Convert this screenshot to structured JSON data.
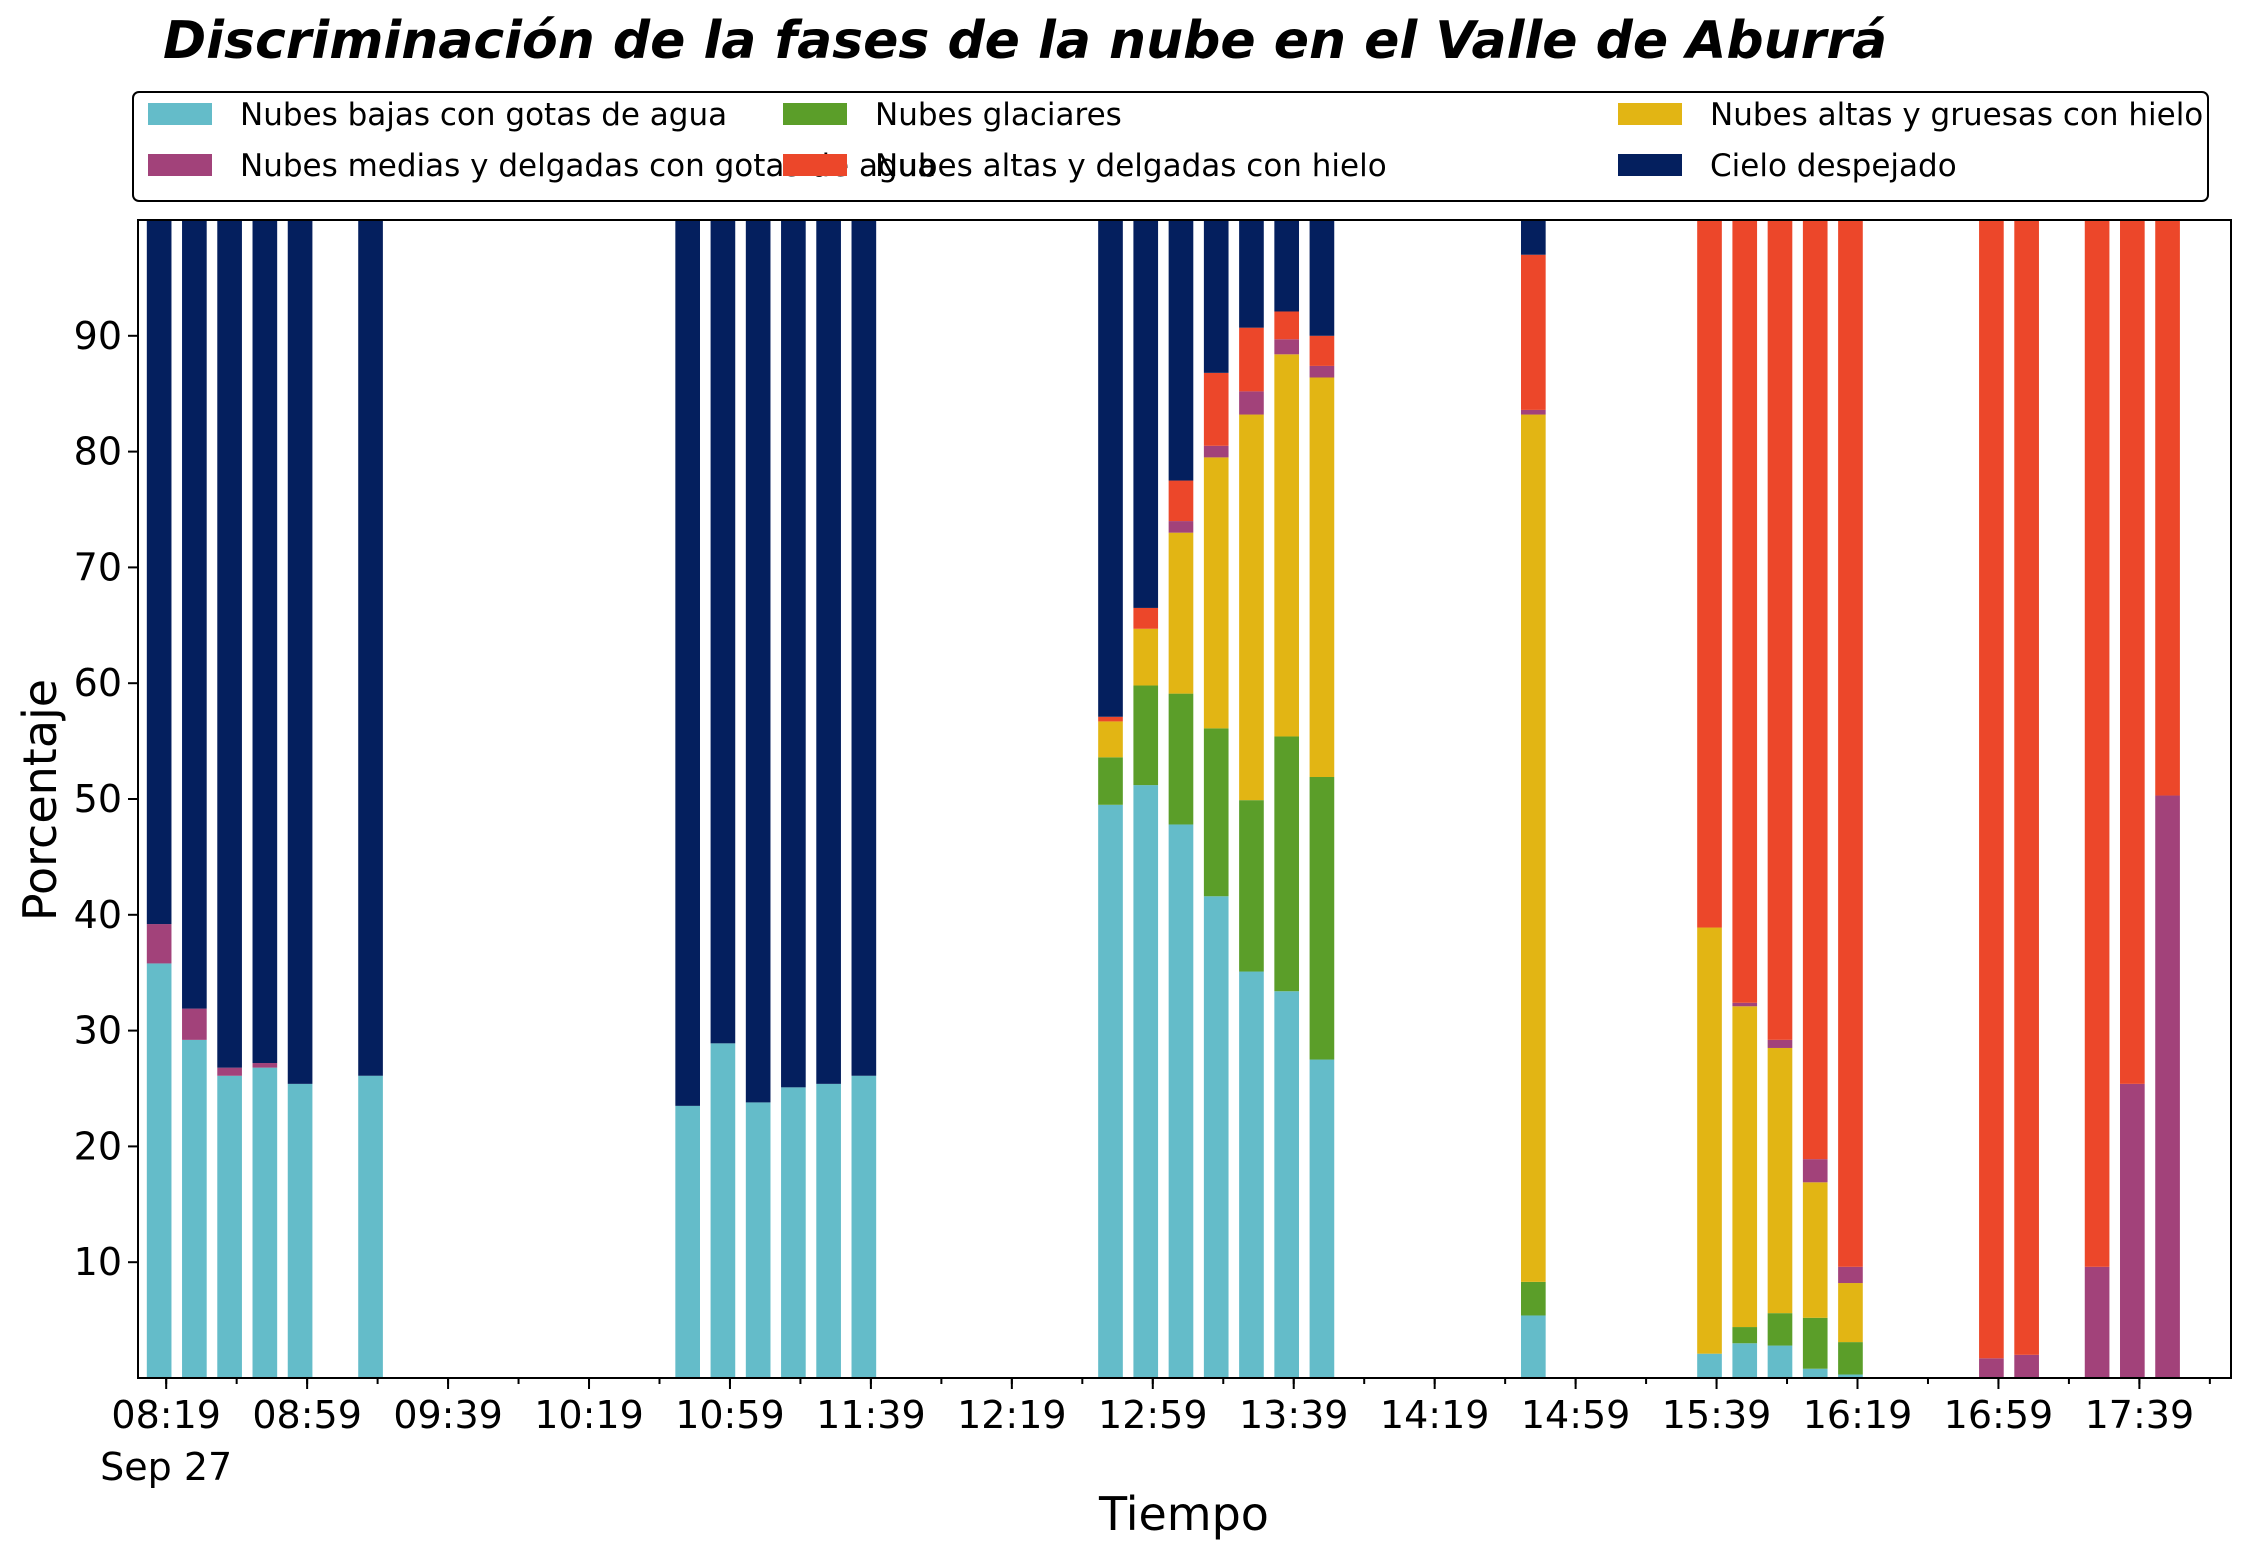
{
  "chart_data": {
    "type": "bar",
    "stacked": true,
    "title": "Discriminación de la fases de la nube en el Valle de Aburrá",
    "xlabel": "Tiempo",
    "ylabel": "Porcentaje",
    "ylim": [
      0,
      100
    ],
    "yticks": [
      10,
      20,
      30,
      40,
      50,
      60,
      70,
      80,
      90
    ],
    "x_range": [
      "08:11",
      "18:05"
    ],
    "bar_width_minutes": 7,
    "xticks": [
      {
        "time": "08:19",
        "label": "08:19",
        "sublabel": "Sep 27"
      },
      {
        "time": "08:59",
        "label": "08:59"
      },
      {
        "time": "09:39",
        "label": "09:39"
      },
      {
        "time": "10:19",
        "label": "10:19"
      },
      {
        "time": "10:59",
        "label": "10:59"
      },
      {
        "time": "11:39",
        "label": "11:39"
      },
      {
        "time": "12:19",
        "label": "12:19"
      },
      {
        "time": "12:59",
        "label": "12:59"
      },
      {
        "time": "13:39",
        "label": "13:39"
      },
      {
        "time": "14:19",
        "label": "14:19"
      },
      {
        "time": "14:59",
        "label": "14:59"
      },
      {
        "time": "15:39",
        "label": "15:39"
      },
      {
        "time": "16:19",
        "label": "16:19"
      },
      {
        "time": "16:59",
        "label": "16:59"
      },
      {
        "time": "17:39",
        "label": "17:39"
      }
    ],
    "legend": {
      "placement": "top",
      "columns": 3,
      "frame": true
    },
    "grid": false,
    "times": [
      "08:17",
      "08:27",
      "08:37",
      "08:47",
      "08:57",
      "09:17",
      "10:47",
      "10:57",
      "11:07",
      "11:17",
      "11:27",
      "11:37",
      "12:47",
      "12:57",
      "13:07",
      "13:17",
      "13:27",
      "13:37",
      "13:47",
      "14:47",
      "15:37",
      "15:47",
      "15:57",
      "16:07",
      "16:17",
      "16:57",
      "17:07",
      "17:27",
      "17:37",
      "17:47"
    ],
    "series": [
      {
        "name": "Nubes bajas con gotas de agua",
        "color": "#64bcc9",
        "values": [
          35.8,
          29.2,
          26.1,
          26.8,
          25.4,
          26.1,
          23.5,
          28.9,
          23.8,
          25.1,
          25.4,
          26.1,
          49.5,
          51.2,
          47.8,
          41.6,
          35.1,
          33.4,
          27.5,
          5.4,
          2.1,
          3.0,
          2.8,
          0.8,
          0.3,
          0,
          0,
          0,
          0,
          0
        ]
      },
      {
        "name": "Nubes glaciares",
        "color": "#5b9e29",
        "values": [
          0,
          0,
          0,
          0,
          0,
          0,
          0,
          0,
          0,
          0,
          0,
          0,
          4.1,
          8.6,
          11.3,
          14.5,
          14.8,
          22.0,
          24.4,
          2.9,
          0,
          1.4,
          2.8,
          4.4,
          2.8,
          0,
          0,
          0,
          0,
          0
        ]
      },
      {
        "name": "Nubes altas y gruesas con hielo",
        "color": "#e2b514",
        "values": [
          0,
          0,
          0,
          0,
          0,
          0,
          0,
          0,
          0,
          0,
          0,
          0,
          3.1,
          4.9,
          13.9,
          23.4,
          33.3,
          33.0,
          34.5,
          74.9,
          36.8,
          27.7,
          22.9,
          11.7,
          5.1,
          0,
          0,
          0,
          0,
          0
        ]
      },
      {
        "name": "Nubes medias y delgadas con gotas de agua",
        "color": "#a2427a",
        "values": [
          3.4,
          2.7,
          0.7,
          0.4,
          0,
          0,
          0,
          0,
          0,
          0,
          0,
          0,
          0,
          0,
          1.0,
          1.0,
          2.0,
          1.3,
          1.0,
          0.4,
          0,
          0.3,
          0.7,
          2.0,
          1.4,
          1.7,
          2.0,
          9.6,
          25.4,
          50.3
        ]
      },
      {
        "name": "Nubes altas y delgadas con hielo",
        "color": "#ec472a",
        "values": [
          0,
          0,
          0,
          0,
          0,
          0,
          0,
          0,
          0,
          0,
          0,
          0,
          0.4,
          1.8,
          3.5,
          6.3,
          5.5,
          2.4,
          2.6,
          13.4,
          61.1,
          67.6,
          70.8,
          81.1,
          90.4,
          98.3,
          98.0,
          90.4,
          74.6,
          49.7
        ]
      },
      {
        "name": "Cielo despejado",
        "color": "#041f5e",
        "values": [
          60.8,
          68.1,
          73.2,
          72.8,
          74.6,
          73.9,
          76.5,
          71.1,
          76.2,
          74.9,
          74.6,
          73.9,
          42.9,
          33.5,
          22.5,
          13.2,
          9.3,
          7.9,
          10.0,
          3.0,
          0,
          0,
          0,
          0,
          0,
          0,
          0,
          0,
          0,
          0
        ]
      }
    ]
  }
}
